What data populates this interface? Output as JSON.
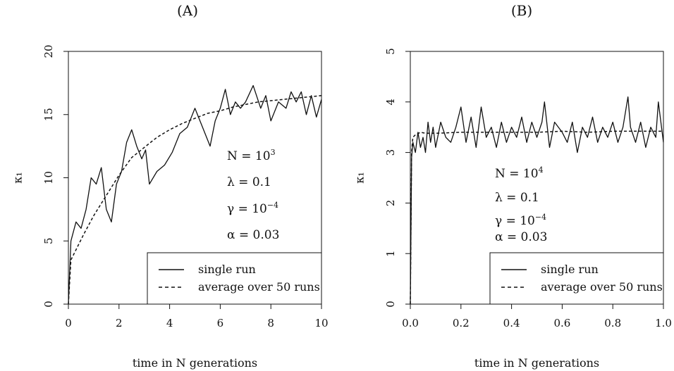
{
  "chart_data": [
    {
      "type": "line",
      "title": "(A)",
      "xlabel": "time in N generations",
      "ylabel": "κ₁",
      "xlim": [
        0,
        10
      ],
      "ylim": [
        0,
        20
      ],
      "xticks": [
        "0",
        "2",
        "4",
        "6",
        "8",
        "10"
      ],
      "yticks": [
        "0",
        "5",
        "10",
        "15",
        "20"
      ],
      "annotations": [
        {
          "base": "N = 10",
          "sup": "3"
        },
        {
          "base": "λ = 0.1",
          "sup": ""
        },
        {
          "base": "γ = 10",
          "sup": "−4"
        },
        {
          "base": "α = 0.03",
          "sup": ""
        }
      ],
      "legend": {
        "placement": "bottom-right",
        "entries": [
          "single run",
          "average over 50 runs"
        ]
      },
      "series": [
        {
          "name": "single run",
          "style": "solid",
          "x": [
            0,
            0.1,
            0.3,
            0.5,
            0.7,
            0.9,
            1.1,
            1.3,
            1.5,
            1.7,
            1.9,
            2.1,
            2.3,
            2.5,
            2.7,
            2.9,
            3.05,
            3.2,
            3.5,
            3.8,
            4.1,
            4.4,
            4.7,
            5.0,
            5.3,
            5.6,
            5.8,
            6.0,
            6.2,
            6.4,
            6.6,
            6.8,
            7.0,
            7.3,
            7.6,
            7.8,
            8.0,
            8.3,
            8.6,
            8.8,
            9.0,
            9.2,
            9.4,
            9.6,
            9.8,
            10.0
          ],
          "y": [
            0,
            5.0,
            6.5,
            6.0,
            7.5,
            10.0,
            9.5,
            10.8,
            7.5,
            6.5,
            9.5,
            10.5,
            12.8,
            13.8,
            12.5,
            11.5,
            12.2,
            9.5,
            10.5,
            11.0,
            12.0,
            13.5,
            14.0,
            15.5,
            14.0,
            12.5,
            14.5,
            15.5,
            17.0,
            15.0,
            16.0,
            15.5,
            16.0,
            17.3,
            15.5,
            16.5,
            14.5,
            16.0,
            15.5,
            16.8,
            16.0,
            16.8,
            15.0,
            16.5,
            14.8,
            16.2
          ]
        },
        {
          "name": "average over 50 runs",
          "style": "dashed",
          "x": [
            0,
            0.1,
            0.3,
            0.6,
            1.0,
            1.5,
            2.0,
            2.5,
            3.0,
            3.5,
            4.0,
            4.5,
            5.0,
            5.5,
            6.0,
            6.5,
            7.0,
            7.5,
            8.0,
            8.5,
            9.0,
            9.5,
            10.0
          ],
          "y": [
            0,
            3.5,
            4.3,
            5.5,
            7.0,
            8.6,
            10.2,
            11.6,
            12.4,
            13.2,
            13.8,
            14.3,
            14.7,
            15.1,
            15.3,
            15.6,
            15.8,
            16.0,
            16.1,
            16.2,
            16.3,
            16.4,
            16.5
          ]
        }
      ]
    },
    {
      "type": "line",
      "title": "(B)",
      "xlabel": "time in N generations",
      "ylabel": "κ₁",
      "xlim": [
        0,
        1.0
      ],
      "ylim": [
        0,
        5
      ],
      "xticks": [
        "0.0",
        "0.2",
        "0.4",
        "0.6",
        "0.8",
        "1.0"
      ],
      "yticks": [
        "0",
        "1",
        "2",
        "3",
        "4",
        "5"
      ],
      "annotations": [
        {
          "base": "N = 10",
          "sup": "4"
        },
        {
          "base": "λ = 0.1",
          "sup": ""
        },
        {
          "base": "γ = 10",
          "sup": "−4"
        },
        {
          "base": "α = 0.03",
          "sup": ""
        }
      ],
      "legend": {
        "placement": "bottom-right",
        "entries": [
          "single run",
          "average over 50 runs"
        ]
      },
      "series": [
        {
          "name": "single run",
          "style": "solid",
          "x": [
            0,
            0.005,
            0.01,
            0.02,
            0.03,
            0.04,
            0.05,
            0.06,
            0.07,
            0.08,
            0.09,
            0.1,
            0.12,
            0.14,
            0.16,
            0.18,
            0.2,
            0.22,
            0.24,
            0.26,
            0.28,
            0.3,
            0.32,
            0.34,
            0.36,
            0.38,
            0.4,
            0.42,
            0.44,
            0.46,
            0.48,
            0.5,
            0.52,
            0.53,
            0.55,
            0.57,
            0.6,
            0.62,
            0.64,
            0.66,
            0.68,
            0.7,
            0.72,
            0.74,
            0.76,
            0.78,
            0.8,
            0.82,
            0.84,
            0.86,
            0.87,
            0.89,
            0.91,
            0.93,
            0.95,
            0.97,
            0.98,
            1.0
          ],
          "y": [
            0,
            2.9,
            3.2,
            3.0,
            3.4,
            3.1,
            3.3,
            3.0,
            3.6,
            3.2,
            3.5,
            3.1,
            3.6,
            3.3,
            3.2,
            3.5,
            3.9,
            3.2,
            3.7,
            3.1,
            3.9,
            3.3,
            3.5,
            3.1,
            3.6,
            3.2,
            3.5,
            3.3,
            3.7,
            3.2,
            3.6,
            3.3,
            3.6,
            4.0,
            3.1,
            3.6,
            3.4,
            3.2,
            3.6,
            3.0,
            3.5,
            3.3,
            3.7,
            3.2,
            3.5,
            3.3,
            3.6,
            3.2,
            3.5,
            4.1,
            3.5,
            3.2,
            3.6,
            3.1,
            3.5,
            3.3,
            4.0,
            3.2
          ]
        },
        {
          "name": "average over 50 runs",
          "style": "dashed",
          "x": [
            0,
            0.005,
            0.01,
            0.02,
            0.04,
            0.06,
            0.1,
            0.2,
            0.3,
            0.4,
            0.5,
            0.6,
            0.7,
            0.8,
            0.9,
            1.0
          ],
          "y": [
            0,
            3.0,
            3.3,
            3.35,
            3.4,
            3.38,
            3.38,
            3.4,
            3.4,
            3.4,
            3.4,
            3.42,
            3.4,
            3.42,
            3.42,
            3.42
          ]
        }
      ]
    }
  ]
}
